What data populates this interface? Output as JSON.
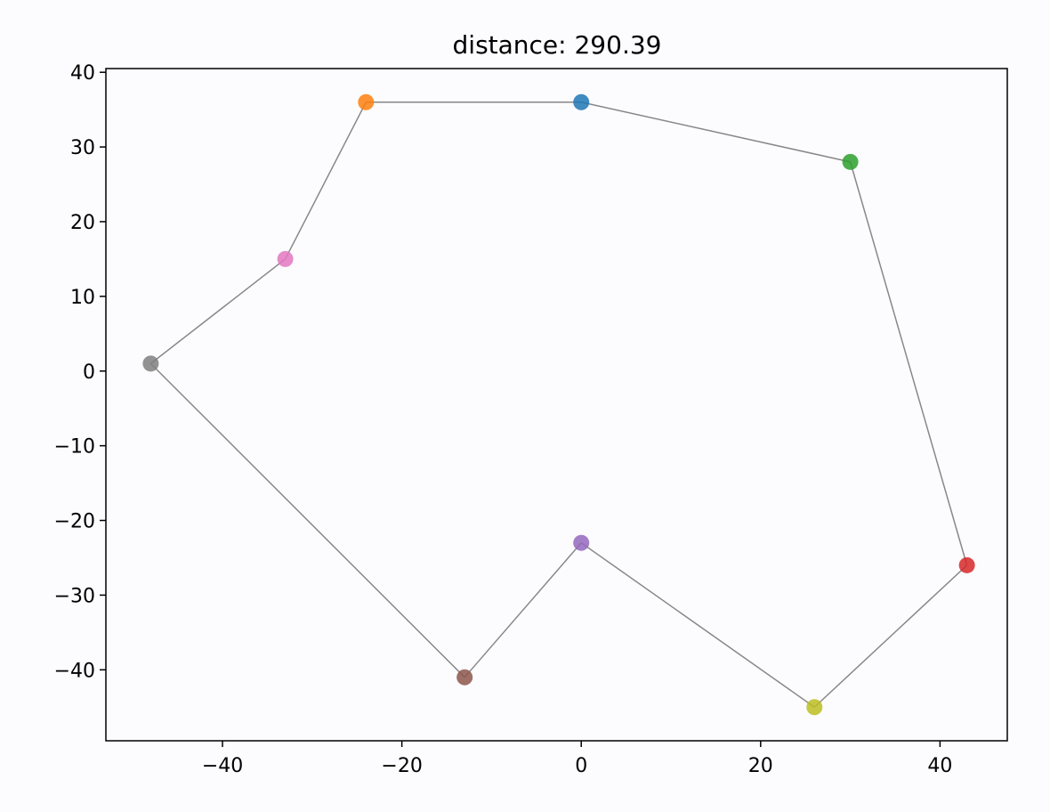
{
  "chart_data": {
    "type": "scatter",
    "title": "distance: 290.39",
    "xlabel": "",
    "ylabel": "",
    "xlim": [
      -53,
      47.5
    ],
    "ylim": [
      -49.5,
      40.5
    ],
    "x_ticks": [
      -40,
      -20,
      0,
      20,
      40
    ],
    "y_ticks": [
      40,
      30,
      20,
      10,
      0,
      -10,
      -20,
      -30,
      -40
    ],
    "x_tick_labels": [
      "−40",
      "−20",
      "0",
      "20",
      "40"
    ],
    "y_tick_labels": [
      "40",
      "30",
      "20",
      "10",
      "0",
      "−10",
      "−20",
      "−30",
      "−40"
    ],
    "grid": false,
    "line_color": "#888888",
    "points": [
      {
        "x": 0,
        "y": 36,
        "color": "#1f77b4"
      },
      {
        "x": -24,
        "y": 36,
        "color": "#ff7f0e"
      },
      {
        "x": 30,
        "y": 28,
        "color": "#2ca02c"
      },
      {
        "x": 43,
        "y": -26,
        "color": "#d62728"
      },
      {
        "x": 0,
        "y": -23,
        "color": "#9467bd"
      },
      {
        "x": -13,
        "y": -41,
        "color": "#8c564b"
      },
      {
        "x": -33,
        "y": 15,
        "color": "#e377c2"
      },
      {
        "x": -48,
        "y": 1,
        "color": "#7f7f7f"
      },
      {
        "x": 26,
        "y": -45,
        "color": "#bcbd22"
      }
    ],
    "tour": [
      0,
      2,
      3,
      8,
      4,
      5,
      7,
      6,
      1,
      0
    ]
  }
}
